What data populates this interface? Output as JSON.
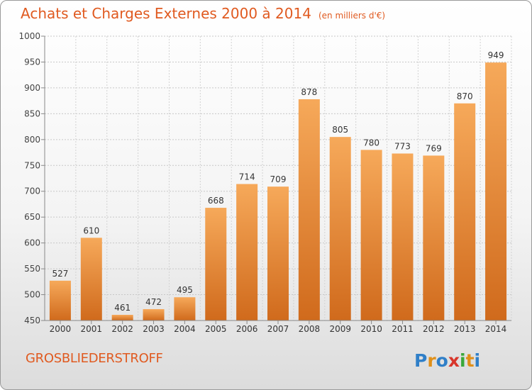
{
  "header": {
    "title": "Achats et Charges Externes 2000 à 2014",
    "unit": "(en milliers d'€)"
  },
  "footer": {
    "city": "GROSBLIEDERSTROFF",
    "logo_text": "Proxiti"
  },
  "colors": {
    "accent": "#e05a20",
    "bar_light": "#f6a95a",
    "bar_dark": "#d06a1c"
  },
  "chart_data": {
    "type": "bar",
    "title": "Achats et Charges Externes 2000 à 2014",
    "subtitle": "(en milliers d'€)",
    "categories": [
      "2000",
      "2001",
      "2002",
      "2003",
      "2004",
      "2005",
      "2006",
      "2007",
      "2008",
      "2009",
      "2010",
      "2011",
      "2012",
      "2013",
      "2014"
    ],
    "values": [
      527,
      610,
      461,
      472,
      495,
      668,
      714,
      709,
      878,
      805,
      780,
      773,
      769,
      870,
      949
    ],
    "ylim": [
      450,
      1000
    ],
    "yticks": [
      450,
      500,
      550,
      600,
      650,
      700,
      750,
      800,
      850,
      900,
      950,
      1000
    ],
    "grid": true,
    "data_labels": true
  }
}
